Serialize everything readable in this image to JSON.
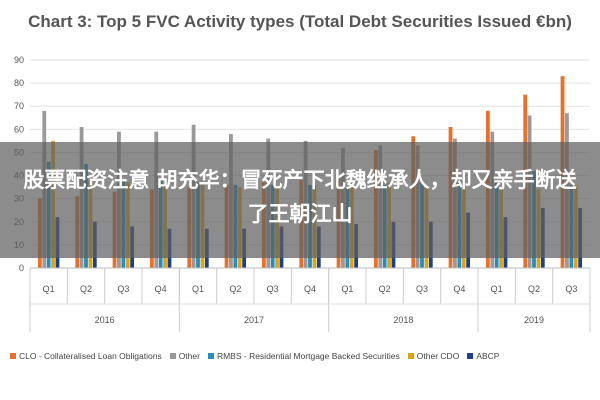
{
  "chart_data": {
    "type": "bar",
    "title": "Chart 3: Top 5 FVC Activity types (Total Debt Securities Issued €bn)",
    "quarters": [
      "Q1",
      "Q2",
      "Q3",
      "Q4",
      "Q1",
      "Q2",
      "Q3",
      "Q4",
      "Q1",
      "Q2",
      "Q3",
      "Q4",
      "Q1",
      "Q2",
      "Q3"
    ],
    "years": [
      {
        "label": "2016",
        "span": 4
      },
      {
        "label": "2017",
        "span": 4
      },
      {
        "label": "2018",
        "span": 4
      },
      {
        "label": "2019",
        "span": 3
      }
    ],
    "ylim": [
      0,
      90
    ],
    "yticks": [
      "0",
      "10",
      "20",
      "30",
      "40",
      "50",
      "60",
      "70",
      "80",
      "90"
    ],
    "series": [
      {
        "name": "CLO - Collateralised Loan Obligations",
        "color": "#e8702a",
        "values": [
          30,
          31,
          33,
          34,
          35,
          36,
          37,
          38,
          39,
          51,
          57,
          61,
          68,
          75,
          83
        ]
      },
      {
        "name": "Other",
        "color": "#9a9a9a",
        "values": [
          68,
          61,
          59,
          59,
          62,
          58,
          56,
          55,
          52,
          53,
          53,
          56,
          59,
          66,
          67
        ]
      },
      {
        "name": "RMBS - Residential Mortgage Backed Securities",
        "color": "#2e8bb8",
        "values": [
          46,
          45,
          38,
          38,
          37,
          36,
          36,
          36,
          35,
          36,
          37,
          38,
          37,
          42,
          36
        ]
      },
      {
        "name": "Other CDO",
        "color": "#d9a520",
        "values": [
          55,
          38,
          37,
          36,
          36,
          35,
          35,
          36,
          35,
          37,
          35,
          34,
          34,
          34,
          36
        ]
      },
      {
        "name": "ABCP",
        "color": "#1f3f8c",
        "values": [
          22,
          20,
          18,
          17,
          17,
          17,
          18,
          18,
          19,
          20,
          20,
          24,
          22,
          26,
          26
        ]
      }
    ]
  },
  "overlay_text": "股票配资注意 胡充华：冒死产下北魏继承人，却又亲手断送了王朝江山"
}
